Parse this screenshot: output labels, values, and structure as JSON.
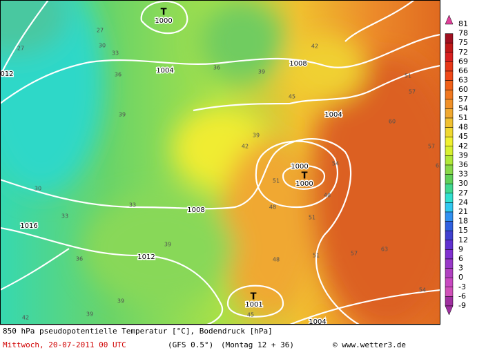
{
  "colorbar": {
    "labels": [
      81,
      78,
      75,
      72,
      69,
      66,
      63,
      60,
      57,
      54,
      51,
      48,
      45,
      42,
      39,
      36,
      33,
      30,
      27,
      24,
      21,
      18,
      15,
      12,
      9,
      6,
      3,
      0,
      -3,
      -6,
      -9
    ]
  },
  "map": {
    "pressure_centers": [
      "T",
      "T",
      "T"
    ],
    "isobar_labels": [
      "1000",
      "1004",
      "1008",
      "1004",
      "1000",
      "1000",
      "1008",
      "1012",
      "1016",
      "012",
      "1001",
      "1004"
    ],
    "temperature_labels": [
      "27",
      "27",
      "30",
      "33",
      "36",
      "39",
      "36",
      "39",
      "42",
      "45",
      "42",
      "39",
      "51",
      "54",
      "48",
      "48",
      "57",
      "60",
      "57",
      "63",
      "51",
      "51",
      "30",
      "33",
      "33",
      "36",
      "39",
      "39",
      "42",
      "45",
      "48",
      "51",
      "57",
      "63",
      "54",
      "39"
    ]
  },
  "footer": {
    "title": "850 hPa pseudopotentielle Temperatur [°C], Bodendruck [hPa]",
    "date": "Mittwoch, 20-07-2011  00 UTC",
    "model": "(GFS 0.5°)",
    "run": "(Montag 12 + 36)",
    "credit": "© www.wetter3.de"
  }
}
